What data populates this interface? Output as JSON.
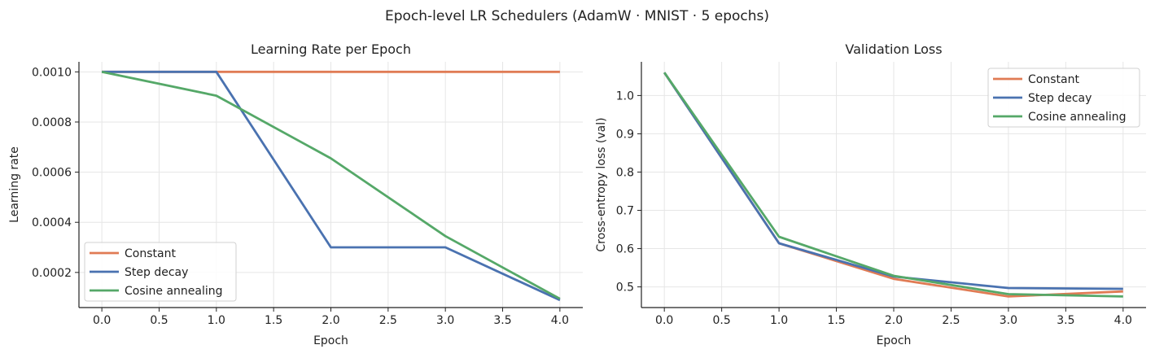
{
  "figure": {
    "title": "Epoch-level LR Schedulers  (AdamW · MNIST · 5 epochs)"
  },
  "chart_data": [
    {
      "type": "line",
      "title": "Learning Rate per Epoch",
      "xlabel": "Epoch",
      "ylabel": "Learning rate",
      "x": [
        0,
        1,
        2,
        3,
        4
      ],
      "xlim": [
        -0.2,
        4.2
      ],
      "ylim": [
        6e-05,
        0.00104
      ],
      "xticks": [
        0.0,
        0.5,
        1.0,
        1.5,
        2.0,
        2.5,
        3.0,
        3.5,
        4.0
      ],
      "xtick_labels": [
        "0.0",
        "0.5",
        "1.0",
        "1.5",
        "2.0",
        "2.5",
        "3.0",
        "3.5",
        "4.0"
      ],
      "yticks": [
        0.0002,
        0.0004,
        0.0006,
        0.0008,
        0.001
      ],
      "ytick_labels": [
        "0.0002",
        "0.0004",
        "0.0006",
        "0.0008",
        "0.0010"
      ],
      "grid": true,
      "legend_position": "lower-left",
      "series": [
        {
          "name": "Constant",
          "color": "#e07b54",
          "values": [
            0.001,
            0.001,
            0.001,
            0.001,
            0.001
          ]
        },
        {
          "name": "Step decay",
          "color": "#4a72b0",
          "values": [
            0.001,
            0.001,
            0.0003,
            0.0003,
            9e-05
          ]
        },
        {
          "name": "Cosine annealing",
          "color": "#55a868",
          "values": [
            0.001,
            0.000905,
            0.000655,
            0.000345,
            9.5e-05
          ]
        }
      ]
    },
    {
      "type": "line",
      "title": "Validation Loss",
      "xlabel": "Epoch",
      "ylabel": "Cross-entropy loss (val)",
      "x": [
        0,
        1,
        2,
        3,
        4
      ],
      "xlim": [
        -0.2,
        4.2
      ],
      "ylim": [
        0.446,
        1.088
      ],
      "xticks": [
        0.0,
        0.5,
        1.0,
        1.5,
        2.0,
        2.5,
        3.0,
        3.5,
        4.0
      ],
      "xtick_labels": [
        "0.0",
        "0.5",
        "1.0",
        "1.5",
        "2.0",
        "2.5",
        "3.0",
        "3.5",
        "4.0"
      ],
      "yticks": [
        0.5,
        0.6,
        0.7,
        0.8,
        0.9,
        1.0
      ],
      "ytick_labels": [
        "0.5",
        "0.6",
        "0.7",
        "0.8",
        "0.9",
        "1.0"
      ],
      "grid": true,
      "legend_position": "upper-right",
      "series": [
        {
          "name": "Constant",
          "color": "#e07b54",
          "values": [
            1.06,
            0.614,
            0.521,
            0.475,
            0.488
          ]
        },
        {
          "name": "Step decay",
          "color": "#4a72b0",
          "values": [
            1.06,
            0.614,
            0.527,
            0.497,
            0.495
          ]
        },
        {
          "name": "Cosine annealing",
          "color": "#55a868",
          "values": [
            1.06,
            0.631,
            0.529,
            0.481,
            0.475
          ]
        }
      ]
    }
  ]
}
